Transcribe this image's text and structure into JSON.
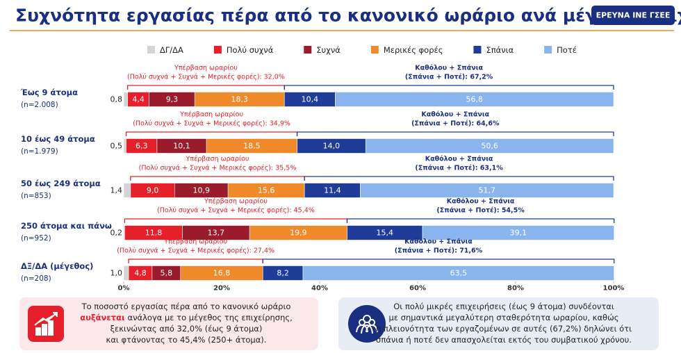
{
  "header": {
    "title": "Συχνότητα εργασίας πέρα από το κανονικό ωράριο ανά μέγεθος επιχείρησης",
    "badge": "ΕΡΕΥΝΑ ΙΝΕ ΓΣΕΕ"
  },
  "chart_data": {
    "type": "stacked-barh",
    "categories": [
      "Έως 9 άτομα",
      "10 έως 49 άτομα",
      "50 έως 249 άτομα",
      "250 άτομα και πάνω",
      "ΔΞ/ΔΑ (μέγεθος)"
    ],
    "sample_sizes": [
      "(n=2.008)",
      "(n=1.979)",
      "(n=853)",
      "(n=952)",
      "(n=208)"
    ],
    "series": [
      {
        "name": "ΔΓ/ΔΑ",
        "color": "#d4d4d4",
        "values": [
          0.8,
          0.5,
          1.4,
          0.2,
          1.0
        ],
        "value_labels": [
          "0,8",
          "0,5",
          "1,4",
          "0,2",
          "1,0"
        ]
      },
      {
        "name": "Πολύ συχνά",
        "color": "#e5202b",
        "values": [
          4.4,
          6.3,
          9.0,
          11.8,
          4.8
        ],
        "value_labels": [
          "4,4",
          "6,3",
          "9,0",
          "11,8",
          "4,8"
        ]
      },
      {
        "name": "Συχνά",
        "color": "#991b2c",
        "values": [
          9.3,
          10.1,
          10.9,
          13.7,
          5.8
        ],
        "value_labels": [
          "9,3",
          "10,1",
          "10,9",
          "13,7",
          "5,8"
        ]
      },
      {
        "name": "Μερικές φορές",
        "color": "#f0892a",
        "values": [
          18.3,
          18.5,
          15.6,
          19.9,
          16.8
        ],
        "value_labels": [
          "18,3",
          "18,5",
          "15,6",
          "19,9",
          "16,8"
        ]
      },
      {
        "name": "Σπάνια",
        "color": "#1f3c98",
        "values": [
          10.4,
          14.0,
          11.4,
          15.4,
          8.2
        ],
        "value_labels": [
          "10,4",
          "14,0",
          "11,4",
          "15,4",
          "8,2"
        ]
      },
      {
        "name": "Ποτέ",
        "color": "#8ab4ee",
        "values": [
          56.8,
          50.6,
          51.7,
          39.1,
          63.5
        ],
        "value_labels": [
          "56,8",
          "50,6",
          "51,7",
          "39,1",
          "63,5"
        ]
      }
    ],
    "annotations": [
      {
        "over": [
          "Υπέρβαση ωραρίου",
          "(Πολύ συχνά + Συχνά + Μερικές φορές): 32,0%"
        ],
        "under": [
          "Καθόλου + Σπάνια",
          "(Σπάνια + Ποτέ): 67,2%"
        ]
      },
      {
        "over": [
          "Υπέρβαση ωραρίου",
          "(Πολύ συχνά + Συχνά + Μερικές φορές): 34,9%"
        ],
        "under": [
          "Καθόλου + Σπάνια",
          "(Σπάνια + Ποτέ): 64,6%"
        ]
      },
      {
        "over": [
          "Υπέρβαση ωραρίου",
          "(Πολύ συχνά + Συχνά + Μερικές φορές): 35,5%"
        ],
        "under": [
          "Καθόλου + Σπάνια",
          "(Σπάνια + Ποτέ): 63,1%"
        ]
      },
      {
        "over": [
          "Υπέρβαση ωραρίου",
          "(Πολύ συχνά + Συχνά + Μερικές φορές): 45,4%"
        ],
        "under": [
          "Καθόλου + Σπάνια",
          "(Σπάνια + Ποτέ): 54,5%"
        ]
      },
      {
        "over": [
          "Υπέρβαση ωραρίου",
          "(Πολύ συχνά + Συχνά + Μερικές φορές): 27,4%"
        ],
        "under": [
          "Καθόλου + Σπάνια",
          "(Σπάνια + Ποτέ): 71,6%"
        ]
      }
    ],
    "xlim": [
      0,
      100
    ],
    "xticks": [
      {
        "value": 0,
        "label": "0%"
      },
      {
        "value": 20,
        "label": "20%"
      },
      {
        "value": 40,
        "label": "40%"
      },
      {
        "value": 60,
        "label": "60%"
      },
      {
        "value": 80,
        "label": "80%"
      },
      {
        "value": 100,
        "label": "100%"
      }
    ],
    "legend": "top"
  },
  "notes": [
    {
      "line1": "Το ποσοστό εργασίας πέρα από το κανονικό ωράριο",
      "bold": "αυξάνεται",
      "line2": "ανάλογα με το μέγεθος της επιχείρησης,",
      "line3": "ξεκινώντας από 32,0% (έως 9 άτομα)",
      "line4": "και φτάνοντας το 45,4% (250+ άτομα)."
    },
    {
      "line1": "Οι πολύ μικρές επιχειρήσεις (έως 9 άτομα) συνδέονται",
      "line2": "με σημαντικά μεγαλύτερη σταθερότητα ωραρίου, καθώς",
      "line3": "η πλειονότητα των εργαζομένων σε αυτές (67,2%) δηλώνει ότι",
      "line4": "σπάνια ή ποτέ δεν απασχολείται εκτός του συμβατικού χρόνου."
    }
  ]
}
